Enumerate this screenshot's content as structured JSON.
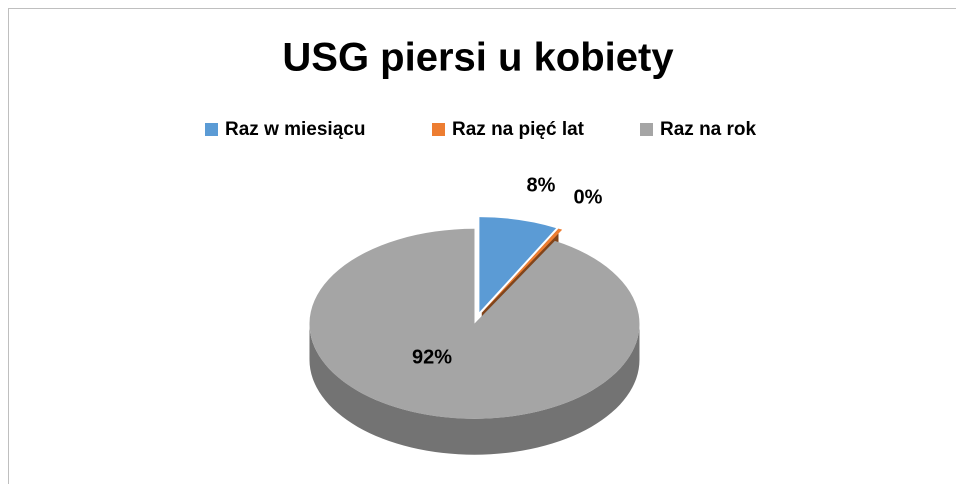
{
  "chart_data": {
    "type": "pie",
    "title": "USG piersi u kobiety",
    "categories": [
      "Raz w miesiącu",
      "Raz na pięć lat",
      "Raz na rok"
    ],
    "values": [
      7.7,
      0.4,
      91.9
    ],
    "value_labels": [
      "8%",
      "0%",
      "92%"
    ],
    "colors": [
      "#5b9bd5",
      "#ed7d31",
      "#a5a5a5"
    ],
    "legend": "top"
  }
}
